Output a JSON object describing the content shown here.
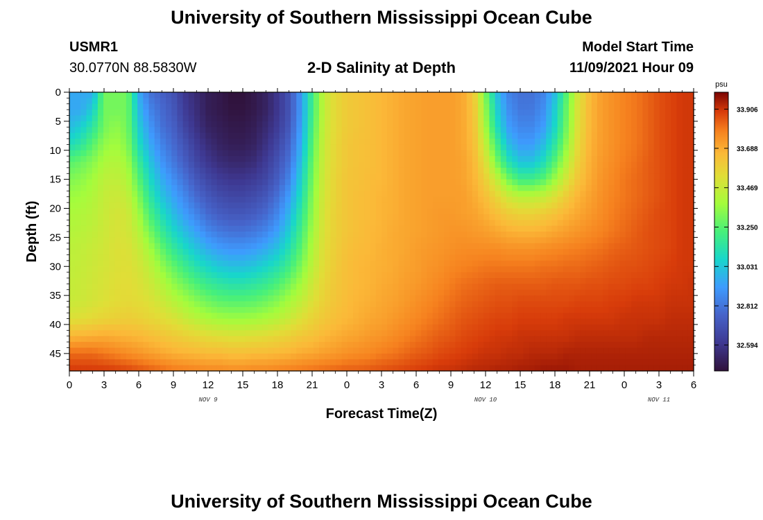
{
  "header": {
    "title": "University of Southern Mississippi Ocean Cube",
    "station": "USMR1",
    "coords": "30.0770N  88.5830W",
    "subtitle": "2-D Salinity at Depth",
    "model_label": "Model Start Time",
    "model_time": "11/09/2021 Hour 09"
  },
  "footer": {
    "title": "University of Southern Mississippi Ocean Cube"
  },
  "chart_data": {
    "type": "heatmap",
    "xlabel": "Forecast Time(Z)",
    "ylabel": "Depth (ft)",
    "x_hours_range": [
      0,
      54
    ],
    "x_tick_labels": [
      "0",
      "3",
      "6",
      "9",
      "12",
      "15",
      "18",
      "21",
      "0",
      "3",
      "6",
      "9",
      "12",
      "15",
      "18",
      "21",
      "0",
      "3",
      "6"
    ],
    "x_tick_hours": [
      0,
      3,
      6,
      9,
      12,
      15,
      18,
      21,
      24,
      27,
      30,
      33,
      36,
      39,
      42,
      45,
      48,
      51,
      54
    ],
    "day_labels": [
      {
        "label": "NOV 9",
        "hour": 12
      },
      {
        "label": "NOV 10",
        "hour": 36
      },
      {
        "label": "NOV 11",
        "hour": 51
      }
    ],
    "y_range": [
      0,
      48
    ],
    "y_ticks": [
      0,
      5,
      10,
      15,
      20,
      25,
      30,
      35,
      40,
      45
    ],
    "colorbar": {
      "unit": "psu",
      "range": [
        32.45,
        34.0
      ],
      "labels": [
        "33.906",
        "33.688",
        "33.469",
        "33.250",
        "33.031",
        "32.812",
        "32.594"
      ],
      "label_values": [
        33.906,
        33.688,
        33.469,
        33.25,
        33.031,
        32.812,
        32.594
      ]
    },
    "grid_x_hours": [
      0,
      1,
      2,
      3,
      4,
      5,
      6,
      7,
      8,
      9,
      10,
      11,
      12,
      13,
      14,
      15,
      16,
      17,
      18,
      19,
      20,
      21,
      22,
      23,
      24,
      25,
      26,
      27,
      28,
      29,
      30,
      31,
      32,
      33,
      34,
      35,
      36,
      37,
      38,
      39,
      40,
      41,
      42,
      43,
      44,
      45,
      46,
      47,
      48,
      49,
      50,
      51,
      52,
      53,
      54
    ],
    "grid_depth_ft": [
      0,
      3,
      6,
      9,
      12,
      15,
      18,
      21,
      24,
      27,
      30,
      33,
      36,
      39,
      42,
      45,
      48
    ],
    "values": [
      [
        32.95,
        32.95,
        32.95,
        33.3,
        33.3,
        33.3,
        32.95,
        32.8,
        32.75,
        32.7,
        32.6,
        32.55,
        32.5,
        32.48,
        32.45,
        32.45,
        32.48,
        32.52,
        32.6,
        32.7,
        32.9,
        33.2,
        33.45,
        33.55,
        33.6,
        33.62,
        33.64,
        33.66,
        33.68,
        33.7,
        33.71,
        33.72,
        33.72,
        33.72,
        33.7,
        33.6,
        33.3,
        33.0,
        32.85,
        32.8,
        32.8,
        32.85,
        33.0,
        33.25,
        33.5,
        33.65,
        33.72,
        33.75,
        33.78,
        33.8,
        33.83,
        33.86,
        33.88,
        33.9,
        33.9
      ],
      [
        32.95,
        32.95,
        33.05,
        33.3,
        33.3,
        33.3,
        33.0,
        32.85,
        32.78,
        32.72,
        32.62,
        32.56,
        32.5,
        32.48,
        32.46,
        32.46,
        32.48,
        32.52,
        32.6,
        32.7,
        32.9,
        33.2,
        33.45,
        33.55,
        33.6,
        33.62,
        33.64,
        33.66,
        33.68,
        33.7,
        33.71,
        33.72,
        33.72,
        33.72,
        33.7,
        33.62,
        33.35,
        33.05,
        32.88,
        32.82,
        32.82,
        32.88,
        33.05,
        33.28,
        33.52,
        33.66,
        33.72,
        33.75,
        33.78,
        33.8,
        33.83,
        33.86,
        33.88,
        33.9,
        33.9
      ],
      [
        33.0,
        33.05,
        33.15,
        33.3,
        33.35,
        33.3,
        33.05,
        32.9,
        32.8,
        32.75,
        32.65,
        32.58,
        32.52,
        32.5,
        32.48,
        32.48,
        32.5,
        32.55,
        32.62,
        32.72,
        32.92,
        33.22,
        33.46,
        33.55,
        33.6,
        33.62,
        33.64,
        33.66,
        33.68,
        33.7,
        33.71,
        33.72,
        33.72,
        33.72,
        33.7,
        33.63,
        33.38,
        33.1,
        32.92,
        32.86,
        32.86,
        32.92,
        33.08,
        33.3,
        33.53,
        33.66,
        33.72,
        33.75,
        33.78,
        33.8,
        33.83,
        33.86,
        33.88,
        33.9,
        33.9
      ],
      [
        33.1,
        33.15,
        33.25,
        33.35,
        33.38,
        33.33,
        33.1,
        32.95,
        32.85,
        32.78,
        32.7,
        32.62,
        32.56,
        32.52,
        32.5,
        32.5,
        32.52,
        32.58,
        32.66,
        32.76,
        32.95,
        33.25,
        33.47,
        33.56,
        33.61,
        33.63,
        33.64,
        33.66,
        33.68,
        33.7,
        33.71,
        33.72,
        33.72,
        33.72,
        33.7,
        33.64,
        33.45,
        33.2,
        33.0,
        32.92,
        32.92,
        33.0,
        33.15,
        33.35,
        33.55,
        33.67,
        33.72,
        33.75,
        33.78,
        33.8,
        33.83,
        33.86,
        33.88,
        33.9,
        33.9
      ],
      [
        33.25,
        33.28,
        33.33,
        33.4,
        33.42,
        33.38,
        33.18,
        33.02,
        32.9,
        32.82,
        32.74,
        32.66,
        32.6,
        32.56,
        32.54,
        32.54,
        32.56,
        32.62,
        32.7,
        32.8,
        33.0,
        33.28,
        33.48,
        33.56,
        33.61,
        33.63,
        33.64,
        33.66,
        33.68,
        33.7,
        33.71,
        33.72,
        33.72,
        33.72,
        33.71,
        33.66,
        33.52,
        33.3,
        33.12,
        33.02,
        33.02,
        33.1,
        33.25,
        33.42,
        33.58,
        33.68,
        33.73,
        33.76,
        33.79,
        33.81,
        33.84,
        33.86,
        33.88,
        33.9,
        33.9
      ],
      [
        33.32,
        33.34,
        33.38,
        33.44,
        33.45,
        33.42,
        33.25,
        33.08,
        32.96,
        32.88,
        32.8,
        32.72,
        32.66,
        32.62,
        32.6,
        32.6,
        32.62,
        32.66,
        32.74,
        32.85,
        33.05,
        33.3,
        33.49,
        33.57,
        33.62,
        33.63,
        33.65,
        33.66,
        33.68,
        33.7,
        33.71,
        33.72,
        33.72,
        33.72,
        33.71,
        33.67,
        33.58,
        33.45,
        33.3,
        33.2,
        33.2,
        33.25,
        33.37,
        33.5,
        33.62,
        33.69,
        33.74,
        33.77,
        33.8,
        33.82,
        33.84,
        33.86,
        33.88,
        33.9,
        33.9
      ],
      [
        33.37,
        33.38,
        33.41,
        33.46,
        33.48,
        33.46,
        33.32,
        33.15,
        33.02,
        32.94,
        32.86,
        32.78,
        32.72,
        32.68,
        32.66,
        32.66,
        32.68,
        32.72,
        32.8,
        32.92,
        33.1,
        33.33,
        33.5,
        33.57,
        33.62,
        33.64,
        33.65,
        33.67,
        33.68,
        33.7,
        33.71,
        33.72,
        33.72,
        33.72,
        33.72,
        33.69,
        33.64,
        33.56,
        33.48,
        33.44,
        33.44,
        33.46,
        33.52,
        33.6,
        33.67,
        33.71,
        33.75,
        33.78,
        33.8,
        33.82,
        33.84,
        33.86,
        33.88,
        33.9,
        33.9
      ],
      [
        33.4,
        33.41,
        33.43,
        33.47,
        33.5,
        33.49,
        33.38,
        33.22,
        33.1,
        33.0,
        32.92,
        32.85,
        32.78,
        32.74,
        32.72,
        32.72,
        32.74,
        32.78,
        32.86,
        32.98,
        33.15,
        33.35,
        33.51,
        33.58,
        33.62,
        33.64,
        33.65,
        33.67,
        33.68,
        33.7,
        33.71,
        33.72,
        33.73,
        33.73,
        33.72,
        33.71,
        33.68,
        33.64,
        33.6,
        33.58,
        33.58,
        33.6,
        33.63,
        33.67,
        33.7,
        33.73,
        33.76,
        33.79,
        33.81,
        33.83,
        33.85,
        33.87,
        33.88,
        33.9,
        33.9
      ],
      [
        33.42,
        33.43,
        33.45,
        33.48,
        33.51,
        33.5,
        33.43,
        33.3,
        33.18,
        33.08,
        33.0,
        32.93,
        32.86,
        32.82,
        32.8,
        32.8,
        32.82,
        32.86,
        32.93,
        33.05,
        33.2,
        33.38,
        33.52,
        33.58,
        33.62,
        33.64,
        33.66,
        33.67,
        33.69,
        33.7,
        33.71,
        33.72,
        33.73,
        33.74,
        33.74,
        33.73,
        33.72,
        33.7,
        33.68,
        33.67,
        33.67,
        33.68,
        33.7,
        33.72,
        33.74,
        33.76,
        33.78,
        33.8,
        33.82,
        33.84,
        33.86,
        33.87,
        33.88,
        33.9,
        33.9
      ],
      [
        33.44,
        33.45,
        33.47,
        33.49,
        33.52,
        33.52,
        33.47,
        33.38,
        33.27,
        33.17,
        33.09,
        33.02,
        32.96,
        32.92,
        32.9,
        32.9,
        32.92,
        32.96,
        33.02,
        33.12,
        33.25,
        33.41,
        33.53,
        33.59,
        33.63,
        33.65,
        33.66,
        33.68,
        33.69,
        33.7,
        33.72,
        33.73,
        33.74,
        33.75,
        33.76,
        33.76,
        33.76,
        33.76,
        33.75,
        33.75,
        33.75,
        33.76,
        33.77,
        33.78,
        33.79,
        33.8,
        33.81,
        33.83,
        33.84,
        33.85,
        33.86,
        33.87,
        33.88,
        33.9,
        33.9
      ],
      [
        33.45,
        33.46,
        33.48,
        33.5,
        33.52,
        33.53,
        33.5,
        33.44,
        33.35,
        33.27,
        33.19,
        33.12,
        33.07,
        33.03,
        33.01,
        33.01,
        33.03,
        33.07,
        33.12,
        33.2,
        33.31,
        33.44,
        33.54,
        33.6,
        33.64,
        33.66,
        33.67,
        33.68,
        33.69,
        33.71,
        33.72,
        33.74,
        33.75,
        33.77,
        33.78,
        33.79,
        33.8,
        33.8,
        33.8,
        33.8,
        33.8,
        33.81,
        33.81,
        33.82,
        33.82,
        33.83,
        33.84,
        33.85,
        33.86,
        33.86,
        33.87,
        33.88,
        33.89,
        33.9,
        33.9
      ],
      [
        33.46,
        33.47,
        33.49,
        33.51,
        33.53,
        33.54,
        33.52,
        33.48,
        33.42,
        33.35,
        33.29,
        33.23,
        33.18,
        33.15,
        33.13,
        33.13,
        33.15,
        33.18,
        33.23,
        33.3,
        33.38,
        33.48,
        33.56,
        33.61,
        33.64,
        33.66,
        33.67,
        33.69,
        33.7,
        33.72,
        33.73,
        33.75,
        33.77,
        33.79,
        33.81,
        33.82,
        33.83,
        33.84,
        33.84,
        33.84,
        33.84,
        33.84,
        33.85,
        33.85,
        33.85,
        33.86,
        33.86,
        33.87,
        33.87,
        33.88,
        33.88,
        33.89,
        33.9,
        33.9,
        33.91
      ],
      [
        33.47,
        33.48,
        33.5,
        33.52,
        33.54,
        33.55,
        33.54,
        33.52,
        33.48,
        33.43,
        33.38,
        33.33,
        33.29,
        33.26,
        33.25,
        33.25,
        33.26,
        33.29,
        33.33,
        33.39,
        33.45,
        33.52,
        33.58,
        33.62,
        33.65,
        33.67,
        33.68,
        33.7,
        33.71,
        33.73,
        33.75,
        33.77,
        33.79,
        33.81,
        33.83,
        33.84,
        33.85,
        33.86,
        33.86,
        33.87,
        33.87,
        33.87,
        33.87,
        33.87,
        33.88,
        33.88,
        33.88,
        33.89,
        33.89,
        33.9,
        33.9,
        33.9,
        33.91,
        33.91,
        33.91
      ],
      [
        33.52,
        33.53,
        33.55,
        33.57,
        33.58,
        33.59,
        33.58,
        33.56,
        33.54,
        33.51,
        33.47,
        33.43,
        33.4,
        33.38,
        33.37,
        33.37,
        33.38,
        33.4,
        33.43,
        33.47,
        33.52,
        33.57,
        33.61,
        33.64,
        33.66,
        33.68,
        33.7,
        33.71,
        33.73,
        33.75,
        33.77,
        33.79,
        33.81,
        33.83,
        33.85,
        33.86,
        33.87,
        33.88,
        33.88,
        33.89,
        33.89,
        33.89,
        33.89,
        33.9,
        33.9,
        33.9,
        33.9,
        33.9,
        33.91,
        33.91,
        33.91,
        33.91,
        33.92,
        33.92,
        33.92
      ],
      [
        33.66,
        33.67,
        33.68,
        33.69,
        33.68,
        33.67,
        33.66,
        33.64,
        33.62,
        33.6,
        33.58,
        33.56,
        33.54,
        33.53,
        33.52,
        33.52,
        33.53,
        33.54,
        33.56,
        33.58,
        33.61,
        33.63,
        33.66,
        33.68,
        33.7,
        33.71,
        33.73,
        33.74,
        33.76,
        33.78,
        33.8,
        33.82,
        33.84,
        33.85,
        33.87,
        33.88,
        33.89,
        33.9,
        33.9,
        33.91,
        33.91,
        33.91,
        33.91,
        33.91,
        33.92,
        33.92,
        33.92,
        33.92,
        33.92,
        33.92,
        33.93,
        33.93,
        33.93,
        33.93,
        33.93
      ],
      [
        33.82,
        33.82,
        33.82,
        33.8,
        33.78,
        33.76,
        33.74,
        33.72,
        33.7,
        33.68,
        33.67,
        33.66,
        33.65,
        33.65,
        33.64,
        33.64,
        33.65,
        33.65,
        33.66,
        33.67,
        33.69,
        33.7,
        33.72,
        33.73,
        33.75,
        33.76,
        33.77,
        33.79,
        33.8,
        33.82,
        33.84,
        33.85,
        33.87,
        33.88,
        33.89,
        33.9,
        33.91,
        33.91,
        33.92,
        33.92,
        33.93,
        33.93,
        33.93,
        33.94,
        33.94,
        33.94,
        33.94,
        33.94,
        33.94,
        33.94,
        33.94,
        33.94,
        33.94,
        33.94,
        33.94
      ],
      [
        33.9,
        33.9,
        33.9,
        33.9,
        33.89,
        33.88,
        33.86,
        33.84,
        33.82,
        33.8,
        33.79,
        33.78,
        33.77,
        33.77,
        33.76,
        33.76,
        33.77,
        33.77,
        33.78,
        33.79,
        33.8,
        33.81,
        33.82,
        33.83,
        33.84,
        33.84,
        33.85,
        33.86,
        33.87,
        33.88,
        33.89,
        33.9,
        33.91,
        33.91,
        33.92,
        33.93,
        33.93,
        33.94,
        33.94,
        33.95,
        33.95,
        33.96,
        33.96,
        33.96,
        33.95,
        33.95,
        33.95,
        33.95,
        33.95,
        33.95,
        33.95,
        33.95,
        33.95,
        33.95,
        33.95
      ]
    ]
  }
}
